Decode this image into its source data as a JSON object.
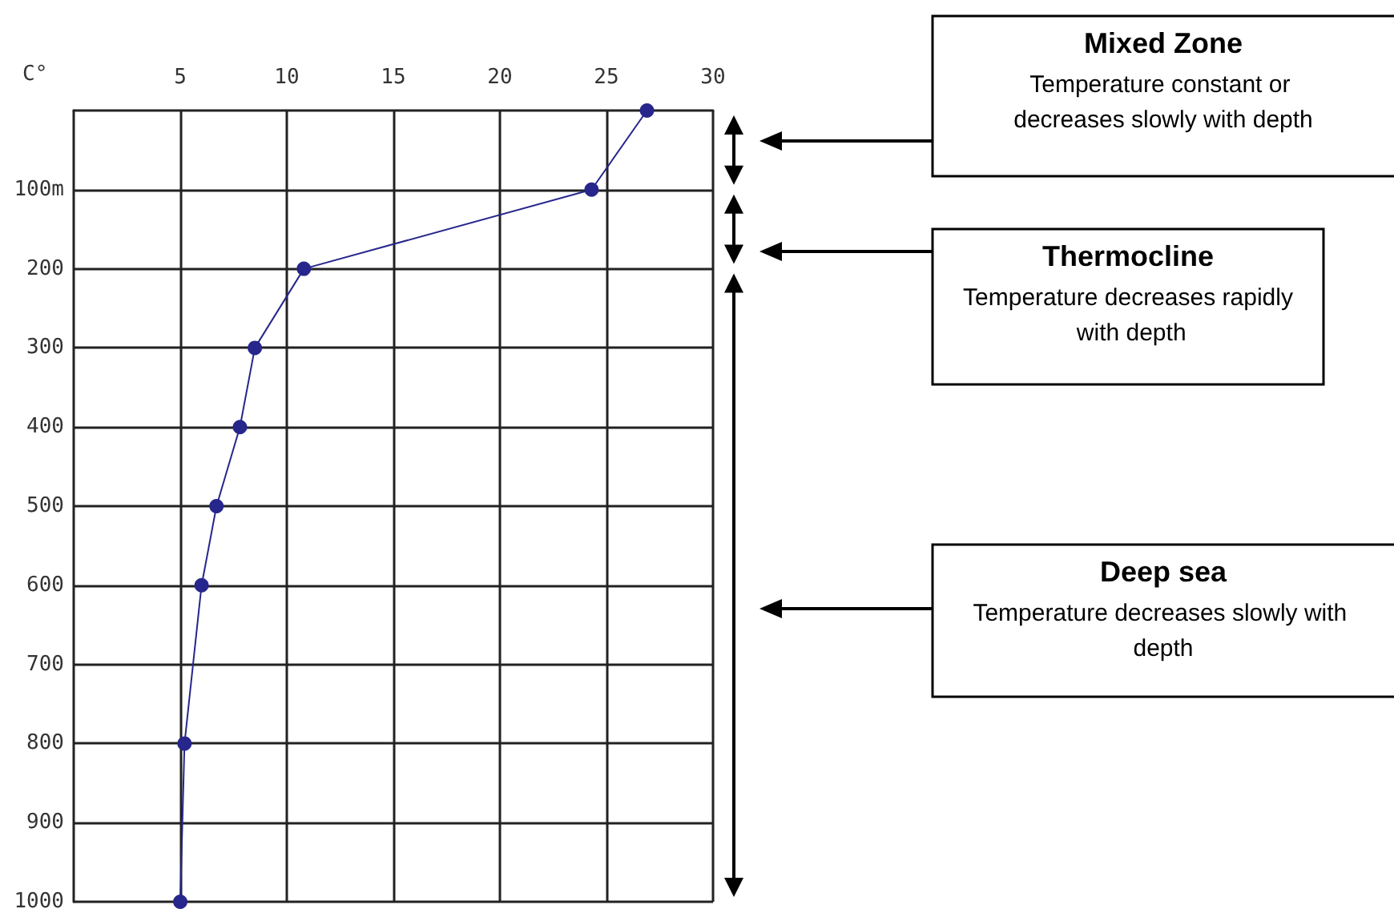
{
  "chart_data": {
    "type": "line",
    "xlabel": "C°",
    "x": [
      26.9,
      24.3,
      10.8,
      8.5,
      7.8,
      6.7,
      6.0,
      5.2,
      5.0
    ],
    "series": [
      {
        "color": "#26268c",
        "values": [
          0,
          100,
          200,
          300,
          400,
          500,
          600,
          800,
          1000
        ]
      }
    ],
    "xlim": [
      0,
      30
    ],
    "xticks": [
      5,
      10,
      15,
      20,
      25,
      30
    ],
    "ylim": [
      1000,
      0
    ],
    "yticks": [
      {
        "value": 100,
        "label": "100m"
      },
      200,
      300,
      400,
      500,
      600,
      700,
      800,
      900,
      1000
    ],
    "grid": true,
    "marker": "circle",
    "line_style": "solid",
    "annotations": [
      "Mixed Zone",
      "Temperature constant or decreases slowly with depth",
      "Thermocline",
      "Temperature decreases rapidly with depth",
      "Deep sea",
      "Temperature decreases slowly with depth"
    ]
  }
}
